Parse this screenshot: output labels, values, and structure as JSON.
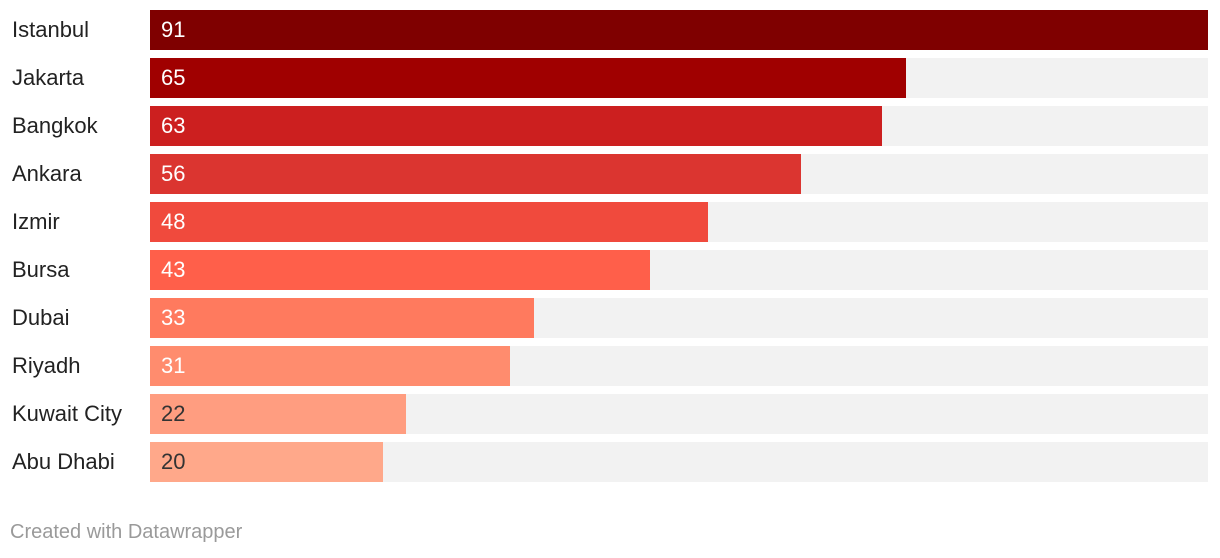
{
  "chart_data": {
    "type": "bar",
    "orientation": "horizontal",
    "categories": [
      "Istanbul",
      "Jakarta",
      "Bangkok",
      "Ankara",
      "Izmir",
      "Bursa",
      "Dubai",
      "Riyadh",
      "Kuwait City",
      "Abu Dhabi"
    ],
    "values": [
      91,
      65,
      63,
      56,
      48,
      43,
      33,
      31,
      22,
      20
    ],
    "xlim": [
      0,
      91
    ],
    "colors": [
      "#7f0000",
      "#a00000",
      "#cc1f1f",
      "#db3530",
      "#f04a3d",
      "#ff5f4a",
      "#ff7a5e",
      "#ff8c6e",
      "#ff9d80",
      "#ffa88a"
    ],
    "value_text_colors": [
      "#ffffff",
      "#ffffff",
      "#ffffff",
      "#ffffff",
      "#ffffff",
      "#ffffff",
      "#ffffff",
      "#ffffff",
      "#333333",
      "#333333"
    ],
    "track_color": "#f2f2f2",
    "data_labels": true,
    "grid": false,
    "legend": "none"
  },
  "footer": {
    "credit": "Created with Datawrapper"
  }
}
